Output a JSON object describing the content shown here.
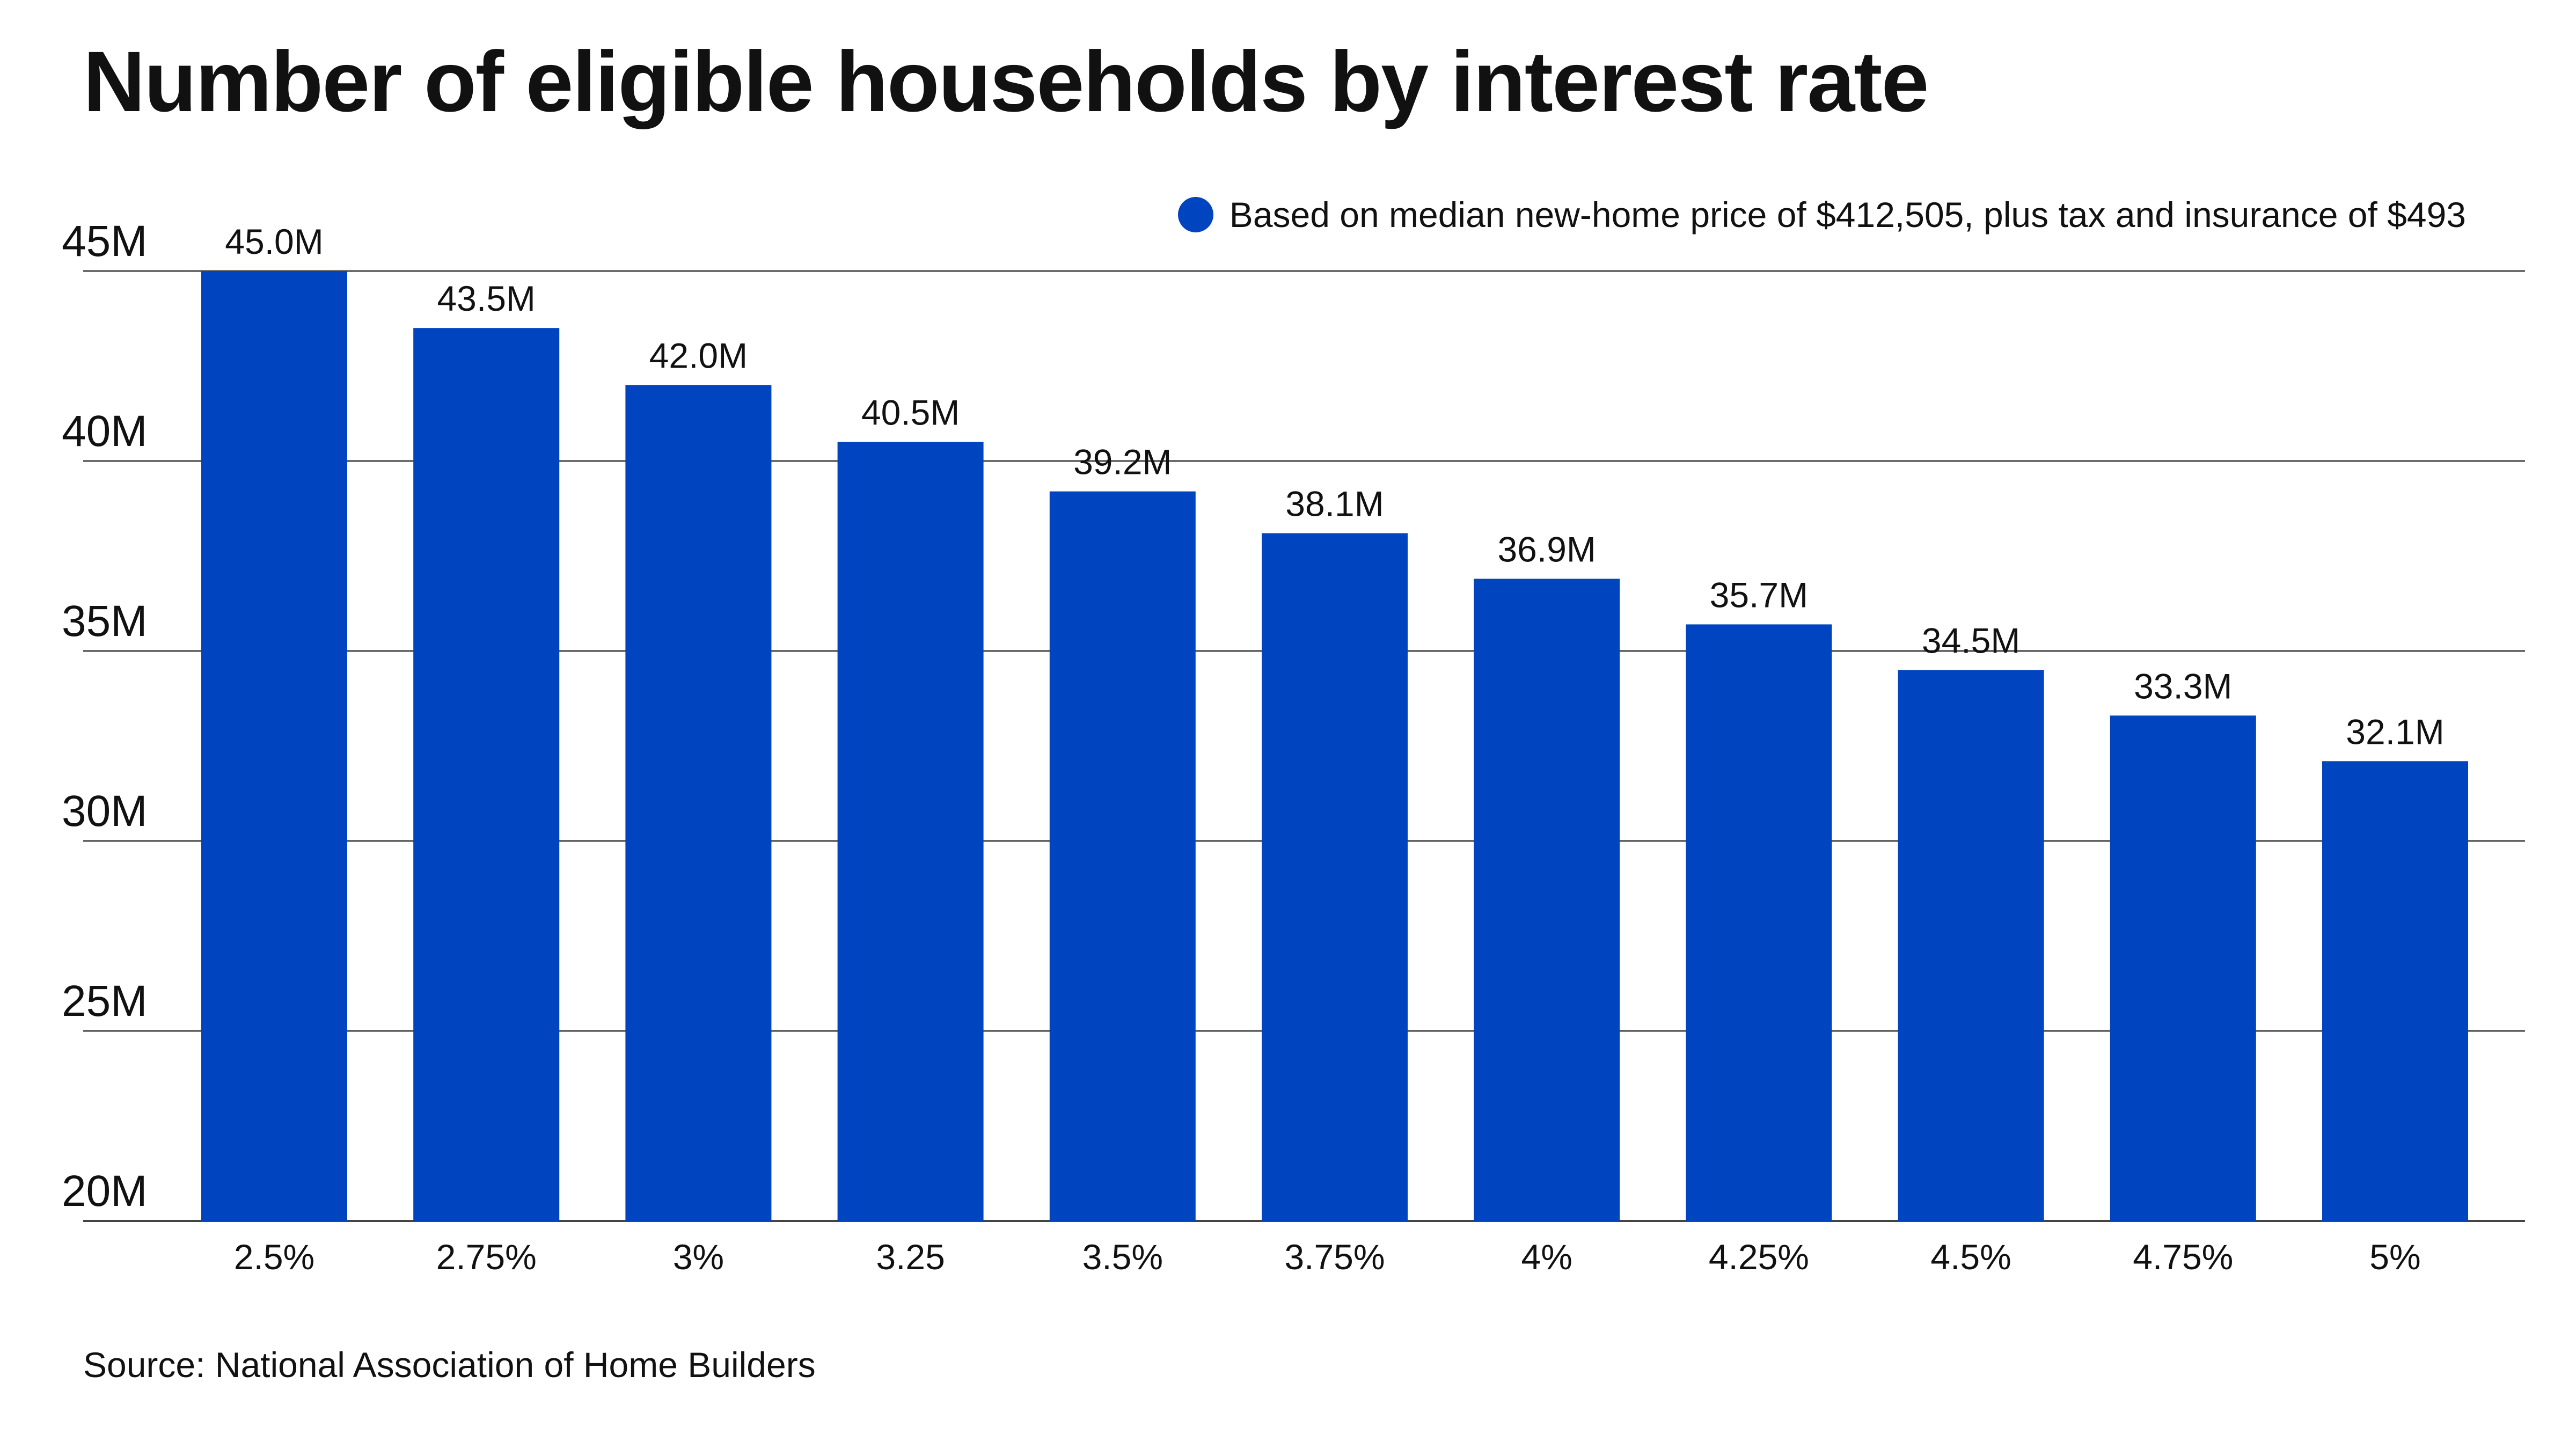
{
  "title": "Number of eligible households by interest rate",
  "source": "Source: National Association of Home Builders",
  "colors": {
    "bar": "#0044c0",
    "grid": "#444444",
    "text": "#111111",
    "background": "#ffffff"
  },
  "chart_data": {
    "type": "bar",
    "title": "Number of eligible households by interest rate",
    "xlabel": "",
    "ylabel": "",
    "categories": [
      "2.5%",
      "2.75%",
      "3%",
      "3.25",
      "3.5%",
      "3.75%",
      "4%",
      "4.25%",
      "4.5%",
      "4.75%",
      "5%"
    ],
    "series": [
      {
        "name": "Based on median new-home price of $412,505, plus tax and insurance of $493",
        "values": [
          45.0,
          43.5,
          42.0,
          40.5,
          39.2,
          38.1,
          36.9,
          35.7,
          34.5,
          33.3,
          32.1
        ],
        "labels": [
          "45.0M",
          "43.5M",
          "42.0M",
          "40.5M",
          "39.2M",
          "38.1M",
          "36.9M",
          "35.7M",
          "34.5M",
          "33.3M",
          "32.1M"
        ]
      }
    ],
    "unit": "M",
    "ylim": [
      20,
      45
    ],
    "yticks": [
      20,
      25,
      30,
      35,
      40,
      45
    ],
    "ytick_labels": [
      "20M",
      "25M",
      "30M",
      "35M",
      "40M",
      "45M"
    ],
    "grid": true,
    "legend_position": "top-right"
  }
}
